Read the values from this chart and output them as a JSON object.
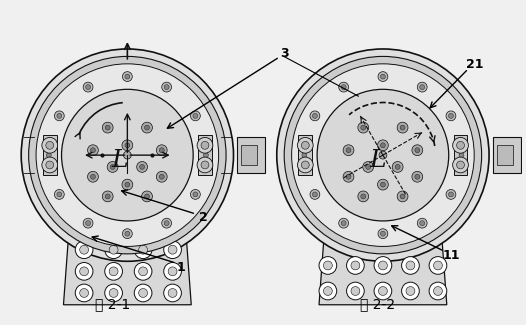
{
  "fig_width": 5.26,
  "fig_height": 3.25,
  "dpi": 100,
  "bg_color": "#f0f0f0",
  "line_color": "#333333",
  "dark_color": "#111111",
  "fig2_1_label": "图 2-1",
  "fig2_2_label": "图 2-2"
}
